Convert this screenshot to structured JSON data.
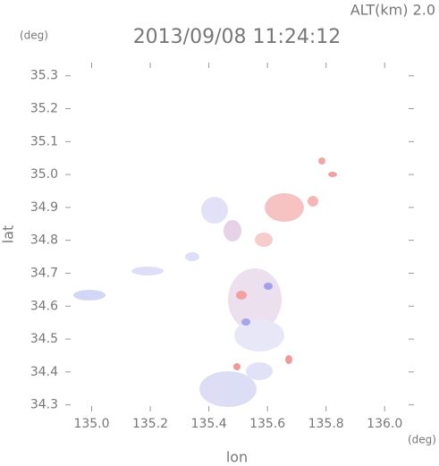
{
  "chart_data": {
    "type": "field",
    "title": "2013/09/08 11:24:12",
    "annotation": "ALT(km)  2.0",
    "x_label": "lon",
    "y_label": "lat",
    "x_unit": "(deg)",
    "y_unit": "(deg)",
    "xlim": [
      134.91,
      136.1
    ],
    "ylim": [
      34.28,
      35.34
    ],
    "xticks": [
      {
        "value": 135,
        "label": "135.0"
      },
      135.2,
      135.4,
      135.6,
      135.8,
      {
        "value": 136,
        "label": "136.0"
      }
    ],
    "yticks": [
      34.3,
      34.4,
      34.5,
      34.6,
      34.7,
      34.8,
      34.9,
      {
        "value": 35,
        "label": "35.0"
      },
      35.1,
      35.2,
      35.3
    ]
  }
}
